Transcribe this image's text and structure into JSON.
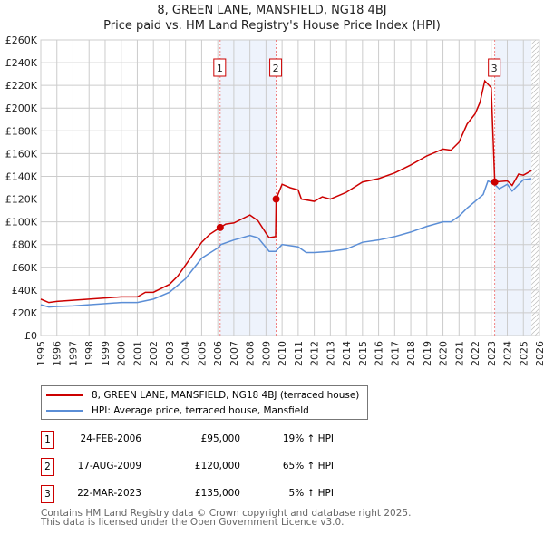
{
  "header": {
    "title": "8, GREEN LANE, MANSFIELD, NG18 4BJ",
    "subtitle": "Price paid vs. HM Land Registry's House Price Index (HPI)"
  },
  "colors": {
    "property": "#cc0000",
    "hpi": "#5b8ed6",
    "shade": "#eef3fc"
  },
  "chart_data": {
    "type": "line",
    "title": "8, GREEN LANE, MANSFIELD, NG18 4BJ",
    "subtitle": "Price paid vs. HM Land Registry's House Price Index (HPI)",
    "xlim": [
      1995,
      2026
    ],
    "ylim": [
      0,
      260000
    ],
    "x_ticks": [
      "1995",
      "1996",
      "1997",
      "1998",
      "1999",
      "2000",
      "2001",
      "2002",
      "2003",
      "2004",
      "2005",
      "2006",
      "2007",
      "2008",
      "2009",
      "2010",
      "2011",
      "2012",
      "2013",
      "2014",
      "2015",
      "2016",
      "2017",
      "2018",
      "2019",
      "2020",
      "2021",
      "2022",
      "2023",
      "2024",
      "2025",
      "2026"
    ],
    "y_ticks": [
      "£0",
      "£20K",
      "£40K",
      "£60K",
      "£80K",
      "£100K",
      "£120K",
      "£140K",
      "£160K",
      "£180K",
      "£200K",
      "£220K",
      "£240K",
      "£260K"
    ],
    "grid": true,
    "series": [
      {
        "name": "8, GREEN LANE, MANSFIELD, NG18 4BJ (terraced house)",
        "x": [
          1995,
          1995.5,
          1996,
          1997,
          1998,
          1999,
          2000,
          2001,
          2001.5,
          2002,
          2003,
          2003.5,
          2004,
          2004.5,
          2005,
          2005.5,
          2006.15,
          2006.5,
          2007,
          2008,
          2008.5,
          2009,
          2009.2,
          2009.6,
          2009.63,
          2010,
          2010.5,
          2011,
          2011.2,
          2012,
          2012.5,
          2013,
          2014,
          2015,
          2016,
          2017,
          2018,
          2019,
          2020,
          2020.5,
          2021,
          2021.5,
          2022,
          2022.3,
          2022.6,
          2023.0,
          2023.22,
          2024,
          2024.3,
          2024.7,
          2025,
          2025.5
        ],
        "values": [
          32000,
          29000,
          30000,
          31000,
          32000,
          33000,
          34000,
          34000,
          38000,
          38000,
          45000,
          52000,
          62000,
          72000,
          82000,
          89000,
          95000,
          98000,
          99000,
          106000,
          101000,
          90000,
          86000,
          87000,
          120000,
          133000,
          130000,
          128000,
          120000,
          118000,
          122000,
          120000,
          126000,
          135000,
          138000,
          143000,
          150000,
          158000,
          164000,
          163000,
          170000,
          186000,
          195000,
          205000,
          224000,
          218000,
          135000,
          136000,
          132000,
          142000,
          141000,
          145000
        ]
      },
      {
        "name": "HPI: Average price, terraced house, Mansfield",
        "x": [
          1995,
          1995.5,
          1996,
          1997,
          1998,
          1999,
          2000,
          2001,
          2002,
          2003,
          2004,
          2005,
          2006,
          2006.2,
          2007,
          2008,
          2008.5,
          2009.2,
          2009.6,
          2010,
          2011,
          2011.5,
          2012,
          2013,
          2014,
          2015,
          2016,
          2017,
          2018,
          2019,
          2020,
          2020.5,
          2021,
          2021.5,
          2022,
          2022.5,
          2022.8,
          2023.2,
          2023.5,
          2024,
          2024.3,
          2025,
          2025.5
        ],
        "values": [
          27000,
          25000,
          25500,
          26000,
          27000,
          28000,
          29000,
          29000,
          32000,
          38000,
          50000,
          68000,
          77000,
          80000,
          84000,
          88000,
          86000,
          74000,
          74000,
          80000,
          78000,
          73000,
          73000,
          74000,
          76000,
          82000,
          84000,
          87000,
          91000,
          96000,
          100000,
          100000,
          105000,
          112000,
          118000,
          124000,
          136000,
          133000,
          129000,
          133000,
          127000,
          137000,
          138000
        ]
      }
    ],
    "sales": [
      {
        "label": "1",
        "x": 2006.15,
        "value": 95000
      },
      {
        "label": "2",
        "x": 2009.63,
        "value": 120000
      },
      {
        "label": "3",
        "x": 2023.22,
        "value": 135000
      }
    ],
    "shaded_ranges": [
      [
        2006.15,
        2009.63
      ],
      [
        2023.22,
        2025.5
      ]
    ],
    "forecast_hatch_from": 2025.5,
    "legend_placement": "below"
  },
  "legend": {
    "items": [
      "8, GREEN LANE, MANSFIELD, NG18 4BJ (terraced house)",
      "HPI: Average price, terraced house, Mansfield"
    ]
  },
  "transactions": [
    {
      "num": "1",
      "date": "24-FEB-2006",
      "price": "£95,000",
      "hpi": "19% ↑ HPI"
    },
    {
      "num": "2",
      "date": "17-AUG-2009",
      "price": "£120,000",
      "hpi": "65% ↑ HPI"
    },
    {
      "num": "3",
      "date": "22-MAR-2023",
      "price": "£135,000",
      "hpi": "5% ↑ HPI"
    }
  ],
  "footer": {
    "line1": "Contains HM Land Registry data © Crown copyright and database right 2025.",
    "line2": "This data is licensed under the Open Government Licence v3.0."
  }
}
